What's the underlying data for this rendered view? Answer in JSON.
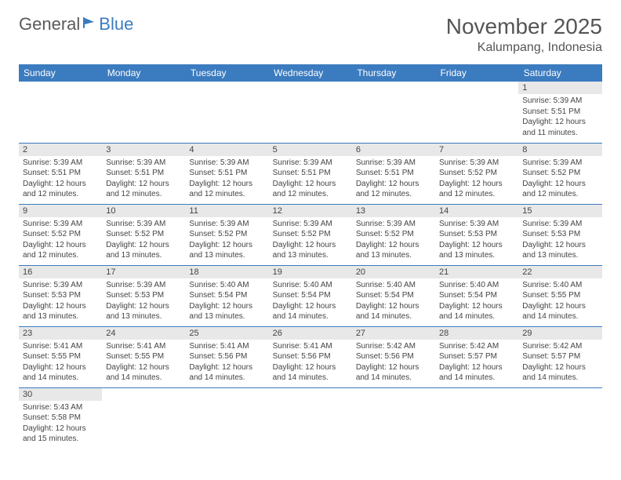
{
  "branding": {
    "text1": "General",
    "text2": "Blue",
    "logo_color": "#3b7bbf"
  },
  "title": "November 2025",
  "location": "Kalumpang, Indonesia",
  "day_headers": [
    "Sunday",
    "Monday",
    "Tuesday",
    "Wednesday",
    "Thursday",
    "Friday",
    "Saturday"
  ],
  "colors": {
    "header_bg": "#3b7bbf",
    "header_text": "#ffffff",
    "daynum_bg": "#e8e8e8",
    "border": "#3b7bbf"
  },
  "weeks": [
    [
      {
        "n": "",
        "sr": "",
        "ss": "",
        "dl": ""
      },
      {
        "n": "",
        "sr": "",
        "ss": "",
        "dl": ""
      },
      {
        "n": "",
        "sr": "",
        "ss": "",
        "dl": ""
      },
      {
        "n": "",
        "sr": "",
        "ss": "",
        "dl": ""
      },
      {
        "n": "",
        "sr": "",
        "ss": "",
        "dl": ""
      },
      {
        "n": "",
        "sr": "",
        "ss": "",
        "dl": ""
      },
      {
        "n": "1",
        "sr": "5:39 AM",
        "ss": "5:51 PM",
        "dl": "12 hours and 11 minutes."
      }
    ],
    [
      {
        "n": "2",
        "sr": "5:39 AM",
        "ss": "5:51 PM",
        "dl": "12 hours and 12 minutes."
      },
      {
        "n": "3",
        "sr": "5:39 AM",
        "ss": "5:51 PM",
        "dl": "12 hours and 12 minutes."
      },
      {
        "n": "4",
        "sr": "5:39 AM",
        "ss": "5:51 PM",
        "dl": "12 hours and 12 minutes."
      },
      {
        "n": "5",
        "sr": "5:39 AM",
        "ss": "5:51 PM",
        "dl": "12 hours and 12 minutes."
      },
      {
        "n": "6",
        "sr": "5:39 AM",
        "ss": "5:51 PM",
        "dl": "12 hours and 12 minutes."
      },
      {
        "n": "7",
        "sr": "5:39 AM",
        "ss": "5:52 PM",
        "dl": "12 hours and 12 minutes."
      },
      {
        "n": "8",
        "sr": "5:39 AM",
        "ss": "5:52 PM",
        "dl": "12 hours and 12 minutes."
      }
    ],
    [
      {
        "n": "9",
        "sr": "5:39 AM",
        "ss": "5:52 PM",
        "dl": "12 hours and 12 minutes."
      },
      {
        "n": "10",
        "sr": "5:39 AM",
        "ss": "5:52 PM",
        "dl": "12 hours and 13 minutes."
      },
      {
        "n": "11",
        "sr": "5:39 AM",
        "ss": "5:52 PM",
        "dl": "12 hours and 13 minutes."
      },
      {
        "n": "12",
        "sr": "5:39 AM",
        "ss": "5:52 PM",
        "dl": "12 hours and 13 minutes."
      },
      {
        "n": "13",
        "sr": "5:39 AM",
        "ss": "5:52 PM",
        "dl": "12 hours and 13 minutes."
      },
      {
        "n": "14",
        "sr": "5:39 AM",
        "ss": "5:53 PM",
        "dl": "12 hours and 13 minutes."
      },
      {
        "n": "15",
        "sr": "5:39 AM",
        "ss": "5:53 PM",
        "dl": "12 hours and 13 minutes."
      }
    ],
    [
      {
        "n": "16",
        "sr": "5:39 AM",
        "ss": "5:53 PM",
        "dl": "12 hours and 13 minutes."
      },
      {
        "n": "17",
        "sr": "5:39 AM",
        "ss": "5:53 PM",
        "dl": "12 hours and 13 minutes."
      },
      {
        "n": "18",
        "sr": "5:40 AM",
        "ss": "5:54 PM",
        "dl": "12 hours and 13 minutes."
      },
      {
        "n": "19",
        "sr": "5:40 AM",
        "ss": "5:54 PM",
        "dl": "12 hours and 14 minutes."
      },
      {
        "n": "20",
        "sr": "5:40 AM",
        "ss": "5:54 PM",
        "dl": "12 hours and 14 minutes."
      },
      {
        "n": "21",
        "sr": "5:40 AM",
        "ss": "5:54 PM",
        "dl": "12 hours and 14 minutes."
      },
      {
        "n": "22",
        "sr": "5:40 AM",
        "ss": "5:55 PM",
        "dl": "12 hours and 14 minutes."
      }
    ],
    [
      {
        "n": "23",
        "sr": "5:41 AM",
        "ss": "5:55 PM",
        "dl": "12 hours and 14 minutes."
      },
      {
        "n": "24",
        "sr": "5:41 AM",
        "ss": "5:55 PM",
        "dl": "12 hours and 14 minutes."
      },
      {
        "n": "25",
        "sr": "5:41 AM",
        "ss": "5:56 PM",
        "dl": "12 hours and 14 minutes."
      },
      {
        "n": "26",
        "sr": "5:41 AM",
        "ss": "5:56 PM",
        "dl": "12 hours and 14 minutes."
      },
      {
        "n": "27",
        "sr": "5:42 AM",
        "ss": "5:56 PM",
        "dl": "12 hours and 14 minutes."
      },
      {
        "n": "28",
        "sr": "5:42 AM",
        "ss": "5:57 PM",
        "dl": "12 hours and 14 minutes."
      },
      {
        "n": "29",
        "sr": "5:42 AM",
        "ss": "5:57 PM",
        "dl": "12 hours and 14 minutes."
      }
    ],
    [
      {
        "n": "30",
        "sr": "5:43 AM",
        "ss": "5:58 PM",
        "dl": "12 hours and 15 minutes."
      },
      {
        "n": "",
        "sr": "",
        "ss": "",
        "dl": ""
      },
      {
        "n": "",
        "sr": "",
        "ss": "",
        "dl": ""
      },
      {
        "n": "",
        "sr": "",
        "ss": "",
        "dl": ""
      },
      {
        "n": "",
        "sr": "",
        "ss": "",
        "dl": ""
      },
      {
        "n": "",
        "sr": "",
        "ss": "",
        "dl": ""
      },
      {
        "n": "",
        "sr": "",
        "ss": "",
        "dl": ""
      }
    ]
  ],
  "labels": {
    "sunrise": "Sunrise: ",
    "sunset": "Sunset: ",
    "daylight": "Daylight: "
  }
}
